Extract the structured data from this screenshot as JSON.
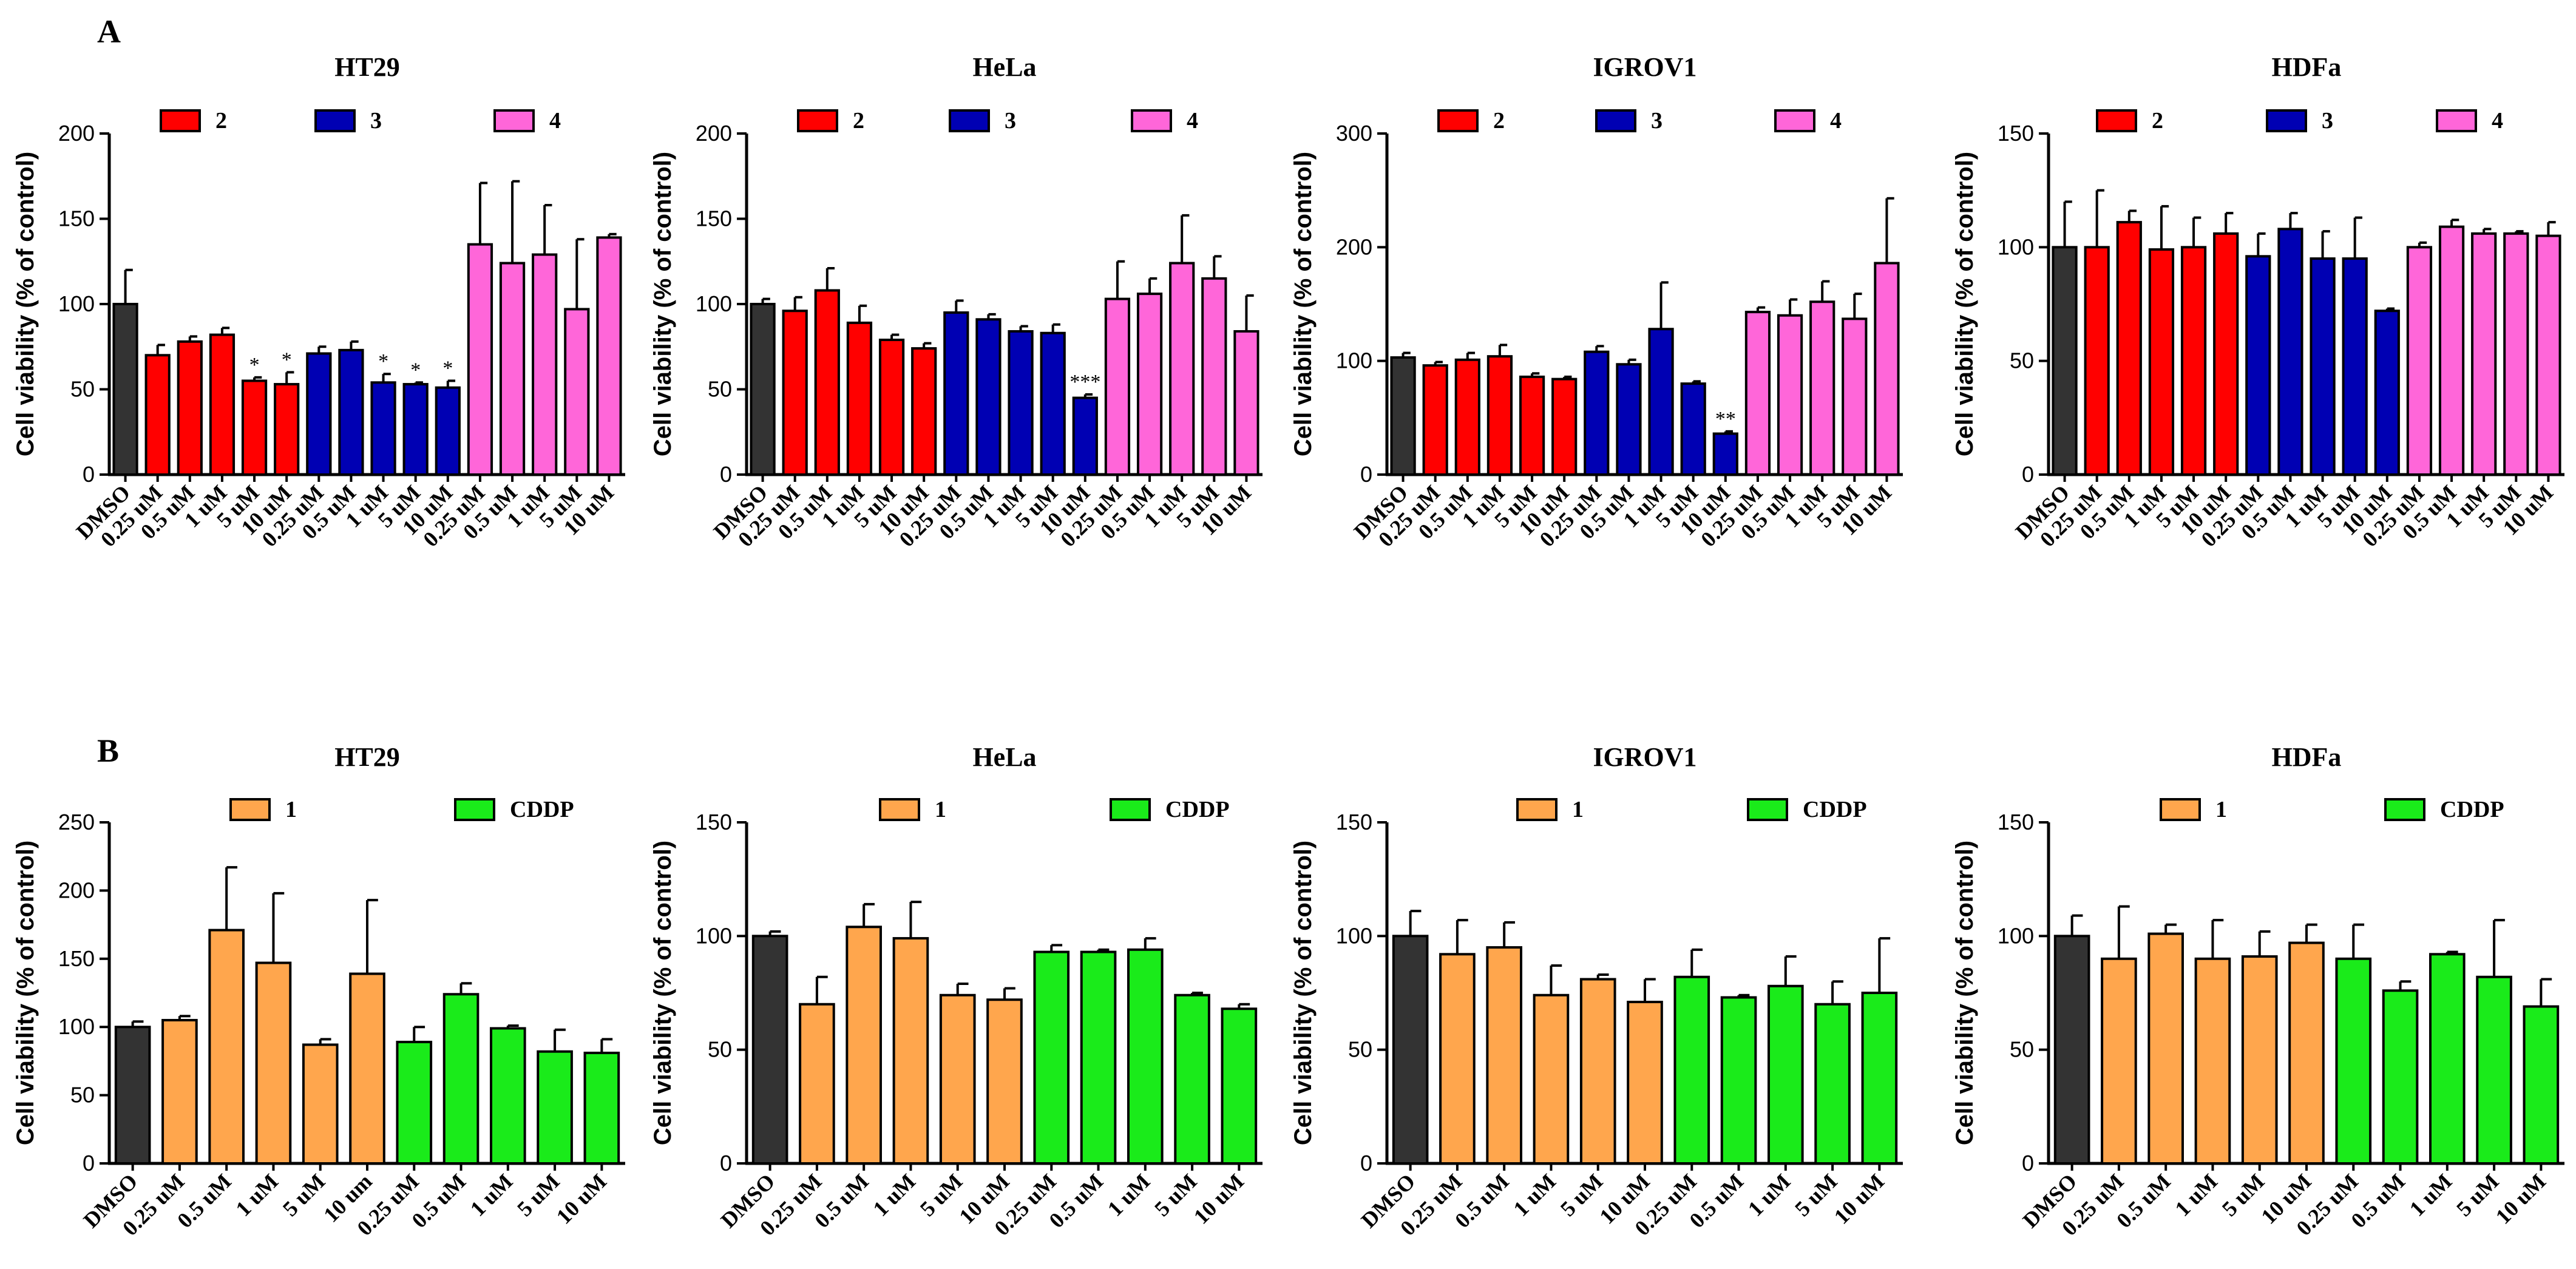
{
  "panels": [
    "A",
    "B"
  ],
  "chart_data": [
    {
      "panel": "A",
      "type": "bar",
      "title": "HT29",
      "xlabel": "",
      "ylabel": "Cell viability (% of control)",
      "ylim": [
        0,
        200
      ],
      "yticks": [
        0,
        50,
        100,
        150,
        200
      ],
      "grid": false,
      "legend": [
        {
          "name": "2",
          "color": "#ff0000"
        },
        {
          "name": "3",
          "color": "#0000b3"
        },
        {
          "name": "4",
          "color": "#ff66d9"
        }
      ],
      "categories": [
        "DMSO",
        "0.25 uM",
        "0.5 uM",
        "1 uM",
        "5 uM",
        "10 uM",
        "0.25 uM",
        "0.5 uM",
        "1 uM",
        "5 uM",
        "10 uM",
        "0.25 uM",
        "0.5 uM",
        "1 uM",
        "5 uM",
        "10 uM"
      ],
      "values": [
        100,
        70,
        78,
        82,
        55,
        53,
        71,
        73,
        54,
        53,
        51,
        135,
        124,
        129,
        97,
        139
      ],
      "errors": [
        20,
        6,
        3,
        4,
        2,
        7,
        4,
        5,
        5,
        1,
        4,
        36,
        48,
        29,
        41,
        2
      ],
      "colors": [
        "#333333",
        "#ff0000",
        "#ff0000",
        "#ff0000",
        "#ff0000",
        "#ff0000",
        "#0000b3",
        "#0000b3",
        "#0000b3",
        "#0000b3",
        "#0000b3",
        "#ff66d9",
        "#ff66d9",
        "#ff66d9",
        "#ff66d9",
        "#ff66d9"
      ],
      "significance": [
        "",
        "",
        "",
        "",
        "*",
        "*",
        "",
        "",
        "*",
        "*",
        "*",
        "",
        "",
        "",
        "",
        ""
      ]
    },
    {
      "panel": "A",
      "type": "bar",
      "title": "HeLa",
      "xlabel": "",
      "ylabel": "Cell viability (% of control)",
      "ylim": [
        0,
        200
      ],
      "yticks": [
        0,
        50,
        100,
        150,
        200
      ],
      "grid": false,
      "legend": [
        {
          "name": "2",
          "color": "#ff0000"
        },
        {
          "name": "3",
          "color": "#0000b3"
        },
        {
          "name": "4",
          "color": "#ff66d9"
        }
      ],
      "categories": [
        "DMSO",
        "0.25 uM",
        "0.5 uM",
        "1 uM",
        "5 uM",
        "10 uM",
        "0.25 uM",
        "0.5 uM",
        "1 uM",
        "5 uM",
        "10 uM",
        "0.25 uM",
        "0.5 uM",
        "1 uM",
        "5 uM",
        "10 uM"
      ],
      "values": [
        100,
        96,
        108,
        89,
        79,
        74,
        95,
        91,
        84,
        83,
        45,
        103,
        106,
        124,
        115,
        84
      ],
      "errors": [
        3,
        8,
        13,
        10,
        3,
        3,
        7,
        3,
        3,
        5,
        2,
        22,
        9,
        28,
        13,
        21
      ],
      "colors": [
        "#333333",
        "#ff0000",
        "#ff0000",
        "#ff0000",
        "#ff0000",
        "#ff0000",
        "#0000b3",
        "#0000b3",
        "#0000b3",
        "#0000b3",
        "#0000b3",
        "#ff66d9",
        "#ff66d9",
        "#ff66d9",
        "#ff66d9",
        "#ff66d9"
      ],
      "significance": [
        "",
        "",
        "",
        "",
        "",
        "",
        "",
        "",
        "",
        "",
        "***",
        "",
        "",
        "",
        "",
        ""
      ]
    },
    {
      "panel": "A",
      "type": "bar",
      "title": "IGROV1",
      "xlabel": "",
      "ylabel": "Cell viability (% of control)",
      "ylim": [
        0,
        300
      ],
      "yticks": [
        0,
        100,
        200,
        300
      ],
      "grid": false,
      "legend": [
        {
          "name": "2",
          "color": "#ff0000"
        },
        {
          "name": "3",
          "color": "#0000b3"
        },
        {
          "name": "4",
          "color": "#ff66d9"
        }
      ],
      "categories": [
        "DMSO",
        "0.25 uM",
        "0.5 uM",
        "1 uM",
        "5 uM",
        "10 uM",
        "0.25 uM",
        "0.5 uM",
        "1 uM",
        "5 uM",
        "10 uM",
        "0.25 uM",
        "0.5 uM",
        "1 uM",
        "5 uM",
        "10 uM"
      ],
      "values": [
        103,
        96,
        101,
        104,
        86,
        84,
        108,
        97,
        128,
        80,
        36,
        143,
        140,
        152,
        137,
        186
      ],
      "errors": [
        4,
        3,
        6,
        10,
        3,
        2,
        5,
        4,
        41,
        2,
        2,
        4,
        14,
        18,
        22,
        57
      ],
      "colors": [
        "#333333",
        "#ff0000",
        "#ff0000",
        "#ff0000",
        "#ff0000",
        "#ff0000",
        "#0000b3",
        "#0000b3",
        "#0000b3",
        "#0000b3",
        "#0000b3",
        "#ff66d9",
        "#ff66d9",
        "#ff66d9",
        "#ff66d9",
        "#ff66d9"
      ],
      "significance": [
        "",
        "",
        "",
        "",
        "",
        "",
        "",
        "",
        "",
        "",
        "**",
        "",
        "",
        "",
        "",
        ""
      ]
    },
    {
      "panel": "A",
      "type": "bar",
      "title": "HDFa",
      "xlabel": "",
      "ylabel": "Cell viability (% of control)",
      "ylim": [
        0,
        150
      ],
      "yticks": [
        0,
        50,
        100,
        150
      ],
      "grid": false,
      "legend": [
        {
          "name": "2",
          "color": "#ff0000"
        },
        {
          "name": "3",
          "color": "#0000b3"
        },
        {
          "name": "4",
          "color": "#ff66d9"
        }
      ],
      "categories": [
        "DMSO",
        "0.25 uM",
        "0.5 uM",
        "1 uM",
        "5 uM",
        "10 uM",
        "0.25 uM",
        "0.5 uM",
        "1 uM",
        "5 uM",
        "10 uM",
        "0.25 uM",
        "0.5 uM",
        "1 uM",
        "5 uM",
        "10 uM"
      ],
      "values": [
        100,
        100,
        111,
        99,
        100,
        106,
        96,
        108,
        95,
        95,
        72,
        100,
        109,
        106,
        106,
        105
      ],
      "errors": [
        20,
        25,
        5,
        19,
        13,
        9,
        10,
        7,
        12,
        18,
        1,
        2,
        3,
        2,
        1,
        6
      ],
      "colors": [
        "#333333",
        "#ff0000",
        "#ff0000",
        "#ff0000",
        "#ff0000",
        "#ff0000",
        "#0000b3",
        "#0000b3",
        "#0000b3",
        "#0000b3",
        "#0000b3",
        "#ff66d9",
        "#ff66d9",
        "#ff66d9",
        "#ff66d9",
        "#ff66d9"
      ],
      "significance": [
        "",
        "",
        "",
        "",
        "",
        "",
        "",
        "",
        "",
        "",
        "",
        "",
        "",
        "",
        "",
        ""
      ]
    },
    {
      "panel": "B",
      "type": "bar",
      "title": "HT29",
      "xlabel": "",
      "ylabel": "Cell viability (% of control)",
      "ylim": [
        0,
        250
      ],
      "yticks": [
        0,
        50,
        100,
        150,
        200,
        250
      ],
      "grid": false,
      "legend": [
        {
          "name": "1",
          "color": "#ffa64d"
        },
        {
          "name": "CDDP",
          "color": "#1aeb1a"
        }
      ],
      "categories": [
        "DMSO",
        "0.25 uM",
        "0.5 uM",
        "1 uM",
        "5 uM",
        "10 um",
        "0.25 uM",
        "0.5 uM",
        "1 uM",
        "5 uM",
        "10 uM"
      ],
      "values": [
        100,
        105,
        171,
        147,
        87,
        139,
        89,
        124,
        99,
        82,
        81
      ],
      "errors": [
        4,
        3,
        46,
        51,
        4,
        54,
        11,
        8,
        2,
        16,
        10
      ],
      "colors": [
        "#333333",
        "#ffa64d",
        "#ffa64d",
        "#ffa64d",
        "#ffa64d",
        "#ffa64d",
        "#1aeb1a",
        "#1aeb1a",
        "#1aeb1a",
        "#1aeb1a",
        "#1aeb1a"
      ],
      "significance": [
        "",
        "",
        "",
        "",
        "",
        "",
        "",
        "",
        "",
        "",
        ""
      ]
    },
    {
      "panel": "B",
      "type": "bar",
      "title": "HeLa",
      "xlabel": "",
      "ylabel": "Cell viability (% of control)",
      "ylim": [
        0,
        150
      ],
      "yticks": [
        0,
        50,
        100,
        150
      ],
      "grid": false,
      "legend": [
        {
          "name": "1",
          "color": "#ffa64d"
        },
        {
          "name": "CDDP",
          "color": "#1aeb1a"
        }
      ],
      "categories": [
        "DMSO",
        "0.25 uM",
        "0.5 uM",
        "1 uM",
        "5 uM",
        "10 uM",
        "0.25 uM",
        "0.5 uM",
        "1 uM",
        "5 uM",
        "10 uM"
      ],
      "values": [
        100,
        70,
        104,
        99,
        74,
        72,
        93,
        93,
        94,
        74,
        68
      ],
      "errors": [
        2,
        12,
        10,
        16,
        5,
        5,
        3,
        1,
        5,
        1,
        2
      ],
      "colors": [
        "#333333",
        "#ffa64d",
        "#ffa64d",
        "#ffa64d",
        "#ffa64d",
        "#ffa64d",
        "#1aeb1a",
        "#1aeb1a",
        "#1aeb1a",
        "#1aeb1a",
        "#1aeb1a"
      ],
      "significance": [
        "",
        "",
        "",
        "",
        "",
        "",
        "",
        "",
        "",
        "",
        ""
      ]
    },
    {
      "panel": "B",
      "type": "bar",
      "title": "IGROV1",
      "xlabel": "",
      "ylabel": "Cell viability (% of control)",
      "ylim": [
        0,
        150
      ],
      "yticks": [
        0,
        50,
        100,
        150
      ],
      "grid": false,
      "legend": [
        {
          "name": "1",
          "color": "#ffa64d"
        },
        {
          "name": "CDDP",
          "color": "#1aeb1a"
        }
      ],
      "categories": [
        "DMSO",
        "0.25 uM",
        "0.5 uM",
        "1 uM",
        "5 uM",
        "10 uM",
        "0.25 uM",
        "0.5 uM",
        "1 uM",
        "5 uM",
        "10 uM"
      ],
      "values": [
        100,
        92,
        95,
        74,
        81,
        71,
        82,
        73,
        78,
        70,
        75
      ],
      "errors": [
        11,
        15,
        11,
        13,
        2,
        10,
        12,
        1,
        13,
        10,
        24
      ],
      "colors": [
        "#333333",
        "#ffa64d",
        "#ffa64d",
        "#ffa64d",
        "#ffa64d",
        "#ffa64d",
        "#1aeb1a",
        "#1aeb1a",
        "#1aeb1a",
        "#1aeb1a",
        "#1aeb1a"
      ],
      "significance": [
        "",
        "",
        "",
        "",
        "",
        "",
        "",
        "",
        "",
        "",
        ""
      ]
    },
    {
      "panel": "B",
      "type": "bar",
      "title": "HDFa",
      "xlabel": "",
      "ylabel": "Cell viability (% of control)",
      "ylim": [
        0,
        150
      ],
      "yticks": [
        0,
        50,
        100,
        150
      ],
      "grid": false,
      "legend": [
        {
          "name": "1",
          "color": "#ffa64d"
        },
        {
          "name": "CDDP",
          "color": "#1aeb1a"
        }
      ],
      "categories": [
        "DMSO",
        "0.25 uM",
        "0.5 uM",
        "1 uM",
        "5 uM",
        "10 uM",
        "0.25 uM",
        "0.5 uM",
        "1 uM",
        "5 uM",
        "10 uM"
      ],
      "values": [
        100,
        90,
        101,
        90,
        91,
        97,
        90,
        76,
        92,
        82,
        69
      ],
      "errors": [
        9,
        23,
        4,
        17,
        11,
        8,
        15,
        4,
        1,
        25,
        12
      ],
      "colors": [
        "#333333",
        "#ffa64d",
        "#ffa64d",
        "#ffa64d",
        "#ffa64d",
        "#ffa64d",
        "#1aeb1a",
        "#1aeb1a",
        "#1aeb1a",
        "#1aeb1a",
        "#1aeb1a"
      ],
      "significance": [
        "",
        "",
        "",
        "",
        "",
        "",
        "",
        "",
        "",
        "",
        ""
      ]
    }
  ]
}
